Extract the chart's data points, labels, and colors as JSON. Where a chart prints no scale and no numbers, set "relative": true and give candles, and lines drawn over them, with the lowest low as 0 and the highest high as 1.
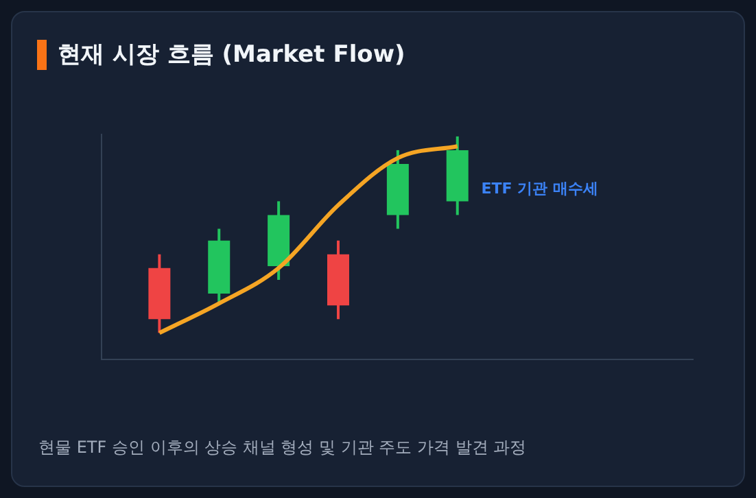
{
  "chart_data": {
    "type": "candlestick",
    "title": "현재 시장 흐름 (Market Flow)",
    "relative": true,
    "categories": [
      null,
      null,
      null,
      null,
      null,
      null
    ],
    "ohlc": [
      [
        0.33,
        0.4,
        0,
        0.07
      ],
      [
        0.2,
        0.53,
        0.15,
        0.47
      ],
      [
        0.34,
        0.67,
        0.27,
        0.6
      ],
      [
        0.4,
        0.47,
        0.07,
        0.14
      ],
      [
        0.6,
        0.93,
        0.53,
        0.86
      ],
      [
        0.67,
        1,
        0.6,
        0.93
      ]
    ],
    "colors": [
      "#ef4444",
      "#22c55e",
      "#22c55e",
      "#ef4444",
      "#22c55e",
      "#22c55e"
    ],
    "series": [
      {
        "type": "line",
        "color": "#f5a524",
        "values": [
          0,
          0.15,
          0.33,
          0.65,
          0.89,
          0.95
        ]
      }
    ],
    "annotations": [
      "ETF 기관 매수세",
      "현물 ETF 승인 이후의 상승 채널 형성 및 기관 주도 가격 발견 과정"
    ]
  }
}
